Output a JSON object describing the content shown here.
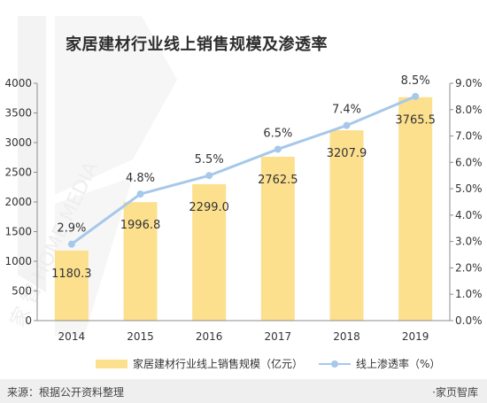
{
  "header": {
    "title": "家居建材行业线上销售规模及渗透率"
  },
  "footer": {
    "source": "来源：根据公开资料整理",
    "brand": "·家页智库"
  },
  "legend": {
    "bar_label": "家居建材行业线上销售规模（亿元）",
    "line_label": "线上渗透率（%）"
  },
  "watermark": {
    "text": "家 智 HOME MEDIA"
  },
  "colors": {
    "bar": "#fce08e",
    "line": "#a6c8ea",
    "axis": "#8c8c8c",
    "text": "#333333",
    "footer_bg": "#efefef"
  },
  "chart_data": {
    "type": "bar",
    "categories": [
      "2014",
      "2015",
      "2016",
      "2017",
      "2018",
      "2019"
    ],
    "series": [
      {
        "name": "家居建材行业线上销售规模（亿元）",
        "type": "bar",
        "axis": "left",
        "values": [
          1180.3,
          1996.8,
          2299.0,
          2762.5,
          3207.9,
          3765.5
        ],
        "labels": [
          "1180.3",
          "1996.8",
          "2299.0",
          "2762.5",
          "3207.9",
          "3765.5"
        ]
      },
      {
        "name": "线上渗透率（%）",
        "type": "line",
        "axis": "right",
        "values": [
          2.9,
          4.8,
          5.5,
          6.5,
          7.4,
          8.5
        ],
        "labels": [
          "2.9%",
          "4.8%",
          "5.5%",
          "6.5%",
          "7.4%",
          "8.5%"
        ]
      }
    ],
    "y_left": {
      "min": 0,
      "max": 4000,
      "step": 500,
      "ticks": [
        "0",
        "500",
        "1000",
        "1500",
        "2000",
        "2500",
        "3000",
        "3500",
        "4000"
      ]
    },
    "y_right": {
      "min": 0,
      "max": 9,
      "step": 1,
      "ticks": [
        "0.0%",
        "1.0%",
        "2.0%",
        "3.0%",
        "4.0%",
        "5.0%",
        "6.0%",
        "7.0%",
        "8.0%",
        "9.0%"
      ]
    },
    "grid": false,
    "legend_position": "bottom"
  }
}
